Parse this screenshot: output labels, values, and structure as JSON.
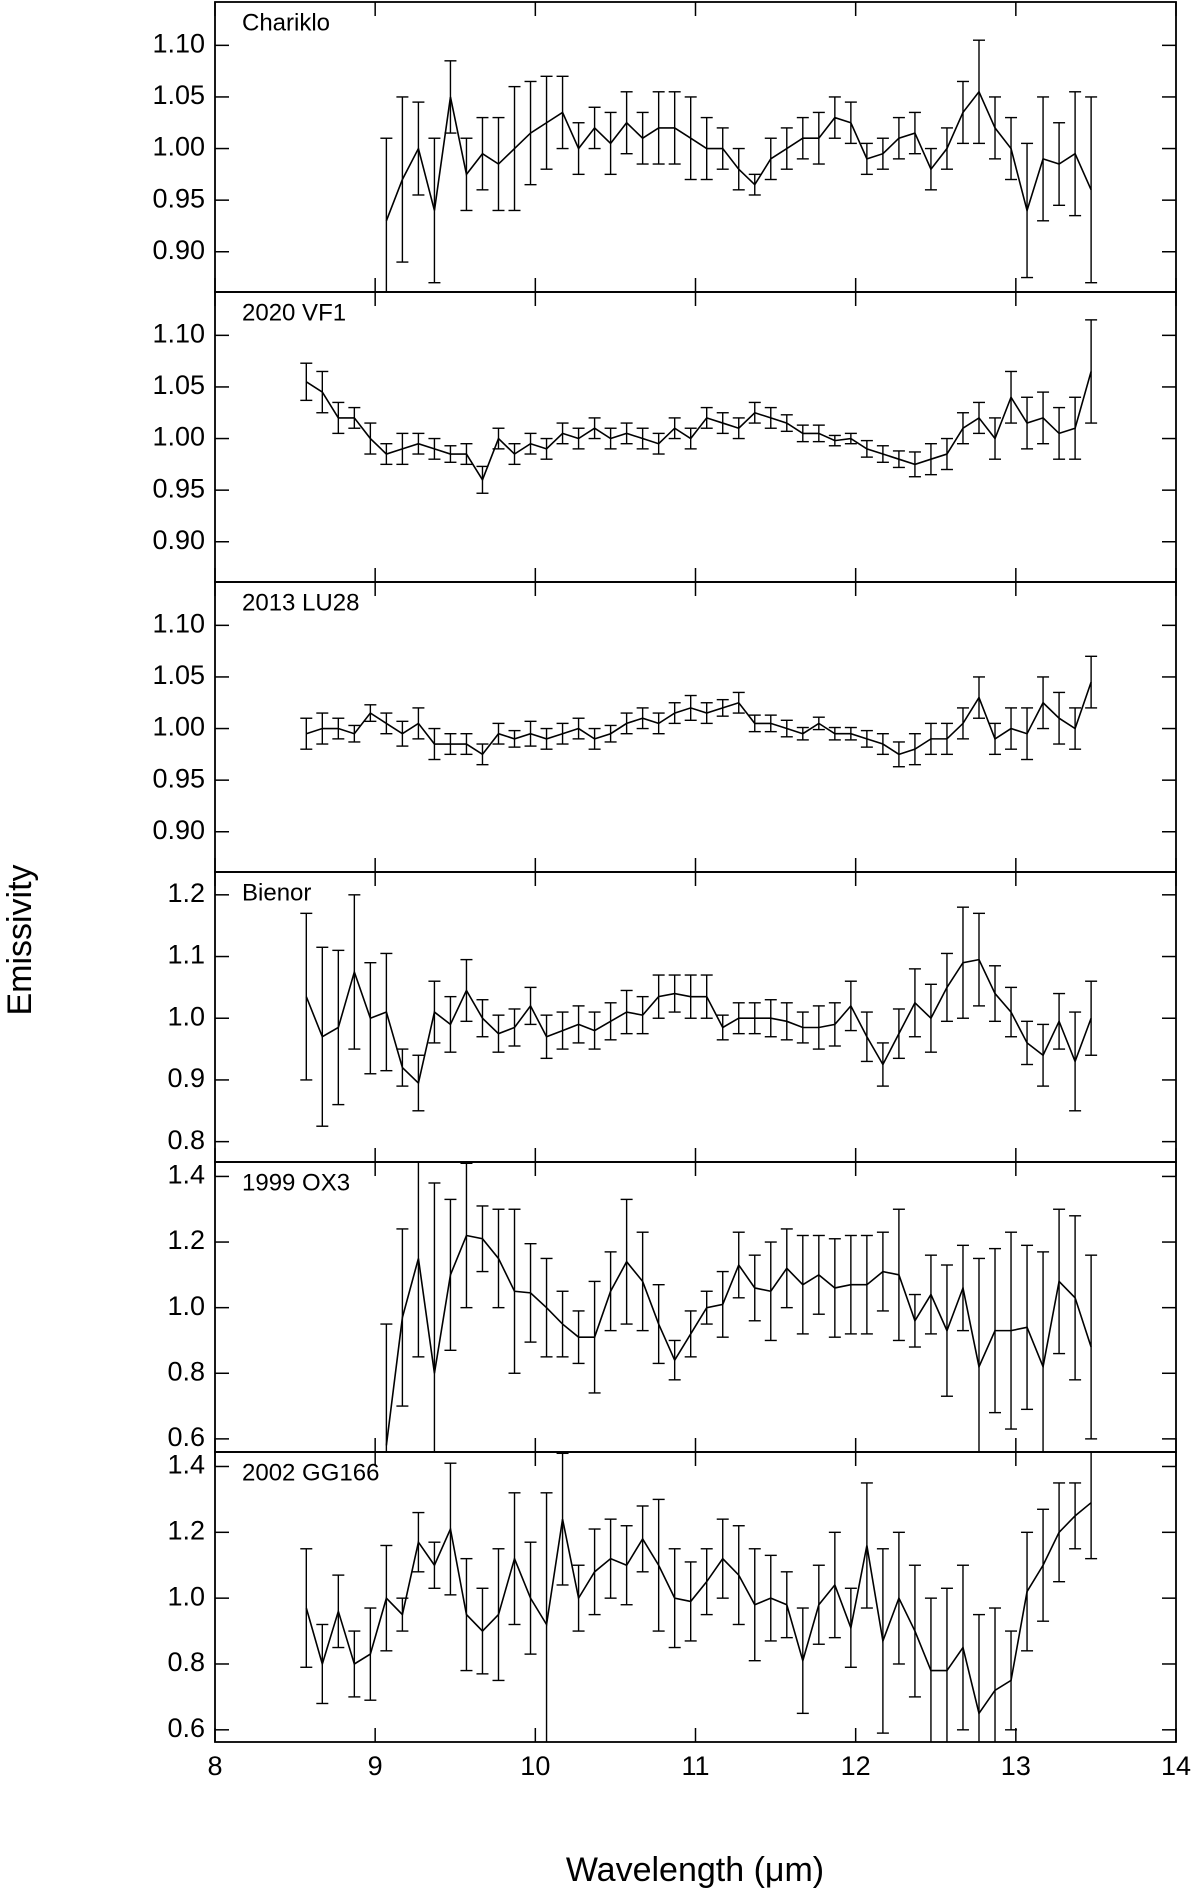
{
  "ylabel": "Emissivity",
  "xlabel": "Wavelength (μm)",
  "chart_data": [
    {
      "type": "line",
      "title": "Chariklo",
      "color": "#000000",
      "xlim": [
        8,
        14
      ],
      "ylim": [
        0.861,
        1.142
      ],
      "yticks": [
        {
          "value": 0.9,
          "label": "0.90"
        },
        0.95,
        {
          "value": 1,
          "label": "1.00"
        },
        1.05,
        {
          "value": 1.1,
          "label": "1.10"
        }
      ],
      "x": [
        9.07,
        9.17,
        9.27,
        9.37,
        9.47,
        9.57,
        9.67,
        9.77,
        9.87,
        9.97,
        10.07,
        10.17,
        10.27,
        10.37,
        10.47,
        10.57,
        10.67,
        10.77,
        10.87,
        10.97,
        11.07,
        11.17,
        11.27,
        11.37,
        11.47,
        11.57,
        11.67,
        11.77,
        11.87,
        11.97,
        12.07,
        12.17,
        12.27,
        12.37,
        12.47,
        12.57,
        12.67,
        12.77,
        12.87,
        12.97,
        13.07,
        13.17,
        13.27,
        13.37,
        13.47
      ],
      "values": [
        0.93,
        0.97,
        1.0,
        0.94,
        1.05,
        0.975,
        0.995,
        0.985,
        1.0,
        1.015,
        1.025,
        1.035,
        1.0,
        1.02,
        1.005,
        1.025,
        1.01,
        1.02,
        1.02,
        1.01,
        1.0,
        1.0,
        0.98,
        0.965,
        0.99,
        1.0,
        1.01,
        1.01,
        1.03,
        1.025,
        0.99,
        0.995,
        1.01,
        1.015,
        0.98,
        1.0,
        1.035,
        1.055,
        1.02,
        1.0,
        0.94,
        0.99,
        0.985,
        0.995,
        0.96
      ],
      "errors": [
        0.08,
        0.08,
        0.045,
        0.07,
        0.035,
        0.035,
        0.035,
        0.045,
        0.06,
        0.05,
        0.045,
        0.035,
        0.025,
        0.02,
        0.03,
        0.03,
        0.025,
        0.035,
        0.035,
        0.04,
        0.03,
        0.02,
        0.02,
        0.01,
        0.02,
        0.02,
        0.02,
        0.025,
        0.02,
        0.02,
        0.015,
        0.015,
        0.02,
        0.02,
        0.02,
        0.02,
        0.03,
        0.05,
        0.03,
        0.03,
        0.065,
        0.06,
        0.04,
        0.06,
        0.09
      ]
    },
    {
      "type": "line",
      "title": "2020 VF1",
      "color": "#000000",
      "xlim": [
        8,
        14
      ],
      "ylim": [
        0.861,
        1.142
      ],
      "yticks": [
        {
          "value": 0.9,
          "label": "0.90"
        },
        0.95,
        {
          "value": 1,
          "label": "1.00"
        },
        1.05,
        {
          "value": 1.1,
          "label": "1.10"
        }
      ],
      "x": [
        8.57,
        8.67,
        8.77,
        8.87,
        8.97,
        9.07,
        9.17,
        9.27,
        9.37,
        9.47,
        9.57,
        9.67,
        9.77,
        9.87,
        9.97,
        10.07,
        10.17,
        10.27,
        10.37,
        10.47,
        10.57,
        10.67,
        10.77,
        10.87,
        10.97,
        11.07,
        11.17,
        11.27,
        11.37,
        11.47,
        11.57,
        11.67,
        11.77,
        11.87,
        11.97,
        12.07,
        12.17,
        12.27,
        12.37,
        12.47,
        12.57,
        12.67,
        12.77,
        12.87,
        12.97,
        13.07,
        13.17,
        13.27,
        13.37,
        13.47
      ],
      "values": [
        1.055,
        1.045,
        1.02,
        1.02,
        1.0,
        0.985,
        0.99,
        0.995,
        0.99,
        0.985,
        0.985,
        0.96,
        1.0,
        0.985,
        0.995,
        0.99,
        1.005,
        1.0,
        1.01,
        1.0,
        1.005,
        1.0,
        0.995,
        1.01,
        1.0,
        1.02,
        1.015,
        1.01,
        1.025,
        1.02,
        1.015,
        1.005,
        1.005,
        0.998,
        1.0,
        0.99,
        0.985,
        0.98,
        0.975,
        0.98,
        0.985,
        1.01,
        1.02,
        1.0,
        1.04,
        1.015,
        1.02,
        1.005,
        1.01,
        1.065
      ],
      "errors": [
        0.018,
        0.02,
        0.015,
        0.01,
        0.015,
        0.01,
        0.015,
        0.01,
        0.01,
        0.008,
        0.01,
        0.013,
        0.01,
        0.01,
        0.01,
        0.01,
        0.01,
        0.01,
        0.01,
        0.01,
        0.01,
        0.01,
        0.01,
        0.01,
        0.01,
        0.01,
        0.01,
        0.01,
        0.01,
        0.01,
        0.008,
        0.008,
        0.008,
        0.005,
        0.005,
        0.008,
        0.008,
        0.008,
        0.012,
        0.015,
        0.015,
        0.015,
        0.015,
        0.02,
        0.025,
        0.025,
        0.025,
        0.025,
        0.03,
        0.05
      ]
    },
    {
      "type": "line",
      "title": "2013 LU28",
      "color": "#000000",
      "xlim": [
        8,
        14
      ],
      "ylim": [
        0.861,
        1.142
      ],
      "yticks": [
        {
          "value": 0.9,
          "label": "0.90"
        },
        0.95,
        {
          "value": 1,
          "label": "1.00"
        },
        1.05,
        {
          "value": 1.1,
          "label": "1.10"
        }
      ],
      "x": [
        8.57,
        8.67,
        8.77,
        8.87,
        8.97,
        9.07,
        9.17,
        9.27,
        9.37,
        9.47,
        9.57,
        9.67,
        9.77,
        9.87,
        9.97,
        10.07,
        10.17,
        10.27,
        10.37,
        10.47,
        10.57,
        10.67,
        10.77,
        10.87,
        10.97,
        11.07,
        11.17,
        11.27,
        11.37,
        11.47,
        11.57,
        11.67,
        11.77,
        11.87,
        11.97,
        12.07,
        12.17,
        12.27,
        12.37,
        12.47,
        12.57,
        12.67,
        12.77,
        12.87,
        12.97,
        13.07,
        13.17,
        13.27,
        13.37,
        13.47
      ],
      "values": [
        0.995,
        1.0,
        1.0,
        0.995,
        1.015,
        1.005,
        0.995,
        1.005,
        0.985,
        0.985,
        0.985,
        0.975,
        0.995,
        0.99,
        0.995,
        0.99,
        0.995,
        1.0,
        0.99,
        0.995,
        1.005,
        1.01,
        1.005,
        1.015,
        1.02,
        1.015,
        1.02,
        1.025,
        1.005,
        1.005,
        1.0,
        0.995,
        1.005,
        0.995,
        0.995,
        0.99,
        0.985,
        0.975,
        0.98,
        0.99,
        0.99,
        1.005,
        1.03,
        0.99,
        1.0,
        0.995,
        1.025,
        1.01,
        1.0,
        1.045
      ],
      "errors": [
        0.015,
        0.015,
        0.01,
        0.008,
        0.008,
        0.01,
        0.012,
        0.015,
        0.015,
        0.01,
        0.01,
        0.01,
        0.01,
        0.008,
        0.012,
        0.01,
        0.01,
        0.01,
        0.01,
        0.008,
        0.01,
        0.01,
        0.01,
        0.01,
        0.012,
        0.01,
        0.008,
        0.01,
        0.008,
        0.008,
        0.008,
        0.006,
        0.006,
        0.006,
        0.006,
        0.008,
        0.01,
        0.012,
        0.015,
        0.015,
        0.015,
        0.015,
        0.02,
        0.015,
        0.02,
        0.025,
        0.025,
        0.025,
        0.02,
        0.025
      ]
    },
    {
      "type": "line",
      "title": "Bienor",
      "color": "#000000",
      "xlim": [
        8,
        14
      ],
      "ylim": [
        0.767,
        1.237
      ],
      "yticks": [
        0.8,
        0.9,
        {
          "value": 1,
          "label": "1.0"
        },
        1.1,
        1.2
      ],
      "x": [
        8.57,
        8.67,
        8.77,
        8.87,
        8.97,
        9.07,
        9.17,
        9.27,
        9.37,
        9.47,
        9.57,
        9.67,
        9.77,
        9.87,
        9.97,
        10.07,
        10.17,
        10.27,
        10.37,
        10.47,
        10.57,
        10.67,
        10.77,
        10.87,
        10.97,
        11.07,
        11.17,
        11.27,
        11.37,
        11.47,
        11.57,
        11.67,
        11.77,
        11.87,
        11.97,
        12.07,
        12.17,
        12.27,
        12.37,
        12.47,
        12.57,
        12.67,
        12.77,
        12.87,
        12.97,
        13.07,
        13.17,
        13.27,
        13.37,
        13.47
      ],
      "values": [
        1.035,
        0.97,
        0.985,
        1.075,
        1.0,
        1.01,
        0.92,
        0.895,
        1.01,
        0.99,
        1.045,
        1.0,
        0.975,
        0.985,
        1.02,
        0.97,
        0.98,
        0.99,
        0.98,
        0.995,
        1.01,
        1.005,
        1.035,
        1.04,
        1.035,
        1.035,
        0.985,
        1.0,
        1.0,
        1.0,
        0.995,
        0.985,
        0.985,
        0.99,
        1.02,
        0.97,
        0.925,
        0.975,
        1.025,
        1.0,
        1.05,
        1.09,
        1.095,
        1.04,
        1.01,
        0.96,
        0.94,
        0.995,
        0.93,
        1.0
      ],
      "errors": [
        0.135,
        0.145,
        0.125,
        0.125,
        0.09,
        0.095,
        0.03,
        0.045,
        0.05,
        0.045,
        0.05,
        0.03,
        0.03,
        0.03,
        0.03,
        0.035,
        0.03,
        0.03,
        0.03,
        0.03,
        0.035,
        0.03,
        0.035,
        0.03,
        0.035,
        0.035,
        0.02,
        0.025,
        0.025,
        0.03,
        0.03,
        0.025,
        0.035,
        0.035,
        0.04,
        0.04,
        0.035,
        0.04,
        0.055,
        0.055,
        0.055,
        0.09,
        0.075,
        0.045,
        0.04,
        0.035,
        0.05,
        0.045,
        0.08,
        0.06
      ]
    },
    {
      "type": "line",
      "title": "1999 OX3",
      "color": "#000000",
      "xlim": [
        8,
        14
      ],
      "ylim": [
        0.56,
        1.444
      ],
      "yticks": [
        0.6,
        0.8,
        {
          "value": 1,
          "label": "1.0"
        },
        1.2,
        1.4
      ],
      "x": [
        9.07,
        9.17,
        9.27,
        9.37,
        9.47,
        9.57,
        9.67,
        9.77,
        9.87,
        9.97,
        10.07,
        10.17,
        10.27,
        10.37,
        10.47,
        10.57,
        10.67,
        10.77,
        10.87,
        10.97,
        11.07,
        11.17,
        11.27,
        11.37,
        11.47,
        11.57,
        11.67,
        11.77,
        11.87,
        11.97,
        12.07,
        12.17,
        12.27,
        12.37,
        12.47,
        12.57,
        12.67,
        12.77,
        12.87,
        12.97,
        13.07,
        13.17,
        13.27,
        13.37,
        13.47
      ],
      "values": [
        0.58,
        0.97,
        1.15,
        0.8,
        1.1,
        1.22,
        1.21,
        1.15,
        1.05,
        1.045,
        1.0,
        0.95,
        0.91,
        0.91,
        1.05,
        1.14,
        1.08,
        0.95,
        0.84,
        0.92,
        1.0,
        1.01,
        1.13,
        1.06,
        1.05,
        1.12,
        1.07,
        1.1,
        1.06,
        1.07,
        1.07,
        1.11,
        1.1,
        0.96,
        1.04,
        0.93,
        1.06,
        0.82,
        0.93,
        0.93,
        0.94,
        0.82,
        1.08,
        1.03,
        0.88
      ],
      "errors": [
        0.37,
        0.27,
        0.3,
        0.58,
        0.23,
        0.22,
        0.1,
        0.15,
        0.25,
        0.15,
        0.15,
        0.1,
        0.08,
        0.17,
        0.12,
        0.19,
        0.15,
        0.12,
        0.06,
        0.07,
        0.05,
        0.1,
        0.1,
        0.1,
        0.15,
        0.12,
        0.15,
        0.12,
        0.15,
        0.15,
        0.15,
        0.12,
        0.2,
        0.08,
        0.12,
        0.2,
        0.13,
        0.33,
        0.25,
        0.3,
        0.25,
        0.35,
        0.22,
        0.25,
        0.28
      ]
    },
    {
      "type": "line",
      "title": "2002 GG166",
      "color": "#000000",
      "xlim": [
        8,
        14
      ],
      "ylim": [
        0.563,
        1.444
      ],
      "yticks": [
        0.6,
        0.8,
        {
          "value": 1,
          "label": "1.0"
        },
        1.2,
        1.4
      ],
      "xticks": [
        8,
        9,
        10,
        11,
        12,
        13,
        14
      ],
      "x": [
        8.57,
        8.67,
        8.77,
        8.87,
        8.97,
        9.07,
        9.17,
        9.27,
        9.37,
        9.47,
        9.57,
        9.67,
        9.77,
        9.87,
        9.97,
        10.07,
        10.17,
        10.27,
        10.37,
        10.47,
        10.57,
        10.67,
        10.77,
        10.87,
        10.97,
        11.07,
        11.17,
        11.27,
        11.37,
        11.47,
        11.57,
        11.67,
        11.77,
        11.87,
        11.97,
        12.07,
        12.17,
        12.27,
        12.37,
        12.47,
        12.57,
        12.67,
        12.77,
        12.87,
        12.97,
        13.07,
        13.17,
        13.27,
        13.37,
        13.47
      ],
      "values": [
        0.97,
        0.8,
        0.96,
        0.8,
        0.83,
        1.0,
        0.95,
        1.17,
        1.1,
        1.21,
        0.95,
        0.9,
        0.95,
        1.12,
        1.0,
        0.92,
        1.24,
        1.0,
        1.08,
        1.12,
        1.1,
        1.18,
        1.1,
        1.0,
        0.99,
        1.05,
        1.12,
        1.07,
        0.98,
        1.0,
        0.98,
        0.81,
        0.98,
        1.04,
        0.91,
        1.16,
        0.87,
        1.0,
        0.9,
        0.78,
        0.78,
        0.85,
        0.65,
        0.72,
        0.75,
        1.02,
        1.1,
        1.2,
        1.25,
        1.29
      ],
      "errors": [
        0.18,
        0.12,
        0.11,
        0.1,
        0.14,
        0.16,
        0.05,
        0.09,
        0.07,
        0.2,
        0.17,
        0.13,
        0.2,
        0.2,
        0.17,
        0.4,
        0.2,
        0.1,
        0.13,
        0.12,
        0.12,
        0.1,
        0.2,
        0.15,
        0.12,
        0.1,
        0.12,
        0.15,
        0.17,
        0.13,
        0.1,
        0.16,
        0.12,
        0.16,
        0.12,
        0.19,
        0.28,
        0.2,
        0.2,
        0.22,
        0.25,
        0.25,
        0.3,
        0.25,
        0.15,
        0.18,
        0.17,
        0.15,
        0.1,
        0.17
      ]
    }
  ]
}
